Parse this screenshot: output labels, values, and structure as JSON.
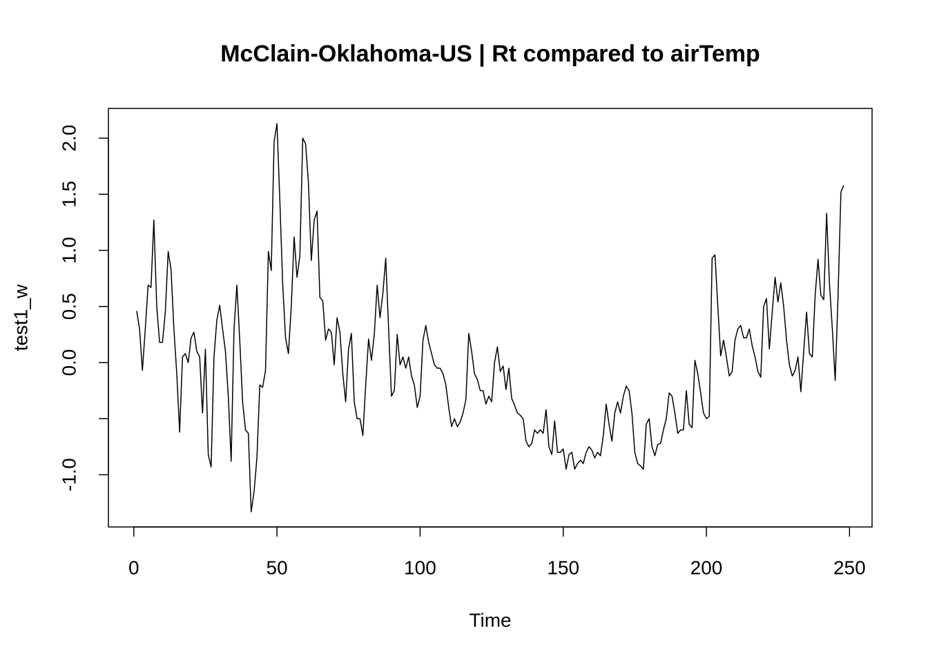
{
  "chart_data": {
    "type": "line",
    "title": "McClain-Oklahoma-US | Rt compared to airTemp",
    "x_label": "Time",
    "y_label": "test1_w",
    "x": [
      1,
      2,
      3,
      4,
      5,
      6,
      7,
      8,
      9,
      10,
      11,
      12,
      13,
      14,
      15,
      16,
      17,
      18,
      19,
      20,
      21,
      22,
      23,
      24,
      25,
      26,
      27,
      28,
      29,
      30,
      31,
      32,
      33,
      34,
      35,
      36,
      37,
      38,
      39,
      40,
      41,
      42,
      43,
      44,
      45,
      46,
      47,
      48,
      49,
      50,
      51,
      52,
      53,
      54,
      55,
      56,
      57,
      58,
      59,
      60,
      61,
      62,
      63,
      64,
      65,
      66,
      67,
      68,
      69,
      70,
      71,
      72,
      73,
      74,
      75,
      76,
      77,
      78,
      79,
      80,
      81,
      82,
      83,
      84,
      85,
      86,
      87,
      88,
      89,
      90,
      91,
      92,
      93,
      94,
      95,
      96,
      97,
      98,
      99,
      100,
      101,
      102,
      103,
      104,
      105,
      106,
      107,
      108,
      109,
      110,
      111,
      112,
      113,
      114,
      115,
      116,
      117,
      118,
      119,
      120,
      121,
      122,
      123,
      124,
      125,
      126,
      127,
      128,
      129,
      130,
      131,
      132,
      133,
      134,
      135,
      136,
      137,
      138,
      139,
      140,
      141,
      142,
      143,
      144,
      145,
      146,
      147,
      148,
      149,
      150,
      151,
      152,
      153,
      154,
      155,
      156,
      157,
      158,
      159,
      160,
      161,
      162,
      163,
      164,
      165,
      166,
      167,
      168,
      169,
      170,
      171,
      172,
      173,
      174,
      175,
      176,
      177,
      178,
      179,
      180,
      181,
      182,
      183,
      184,
      185,
      186,
      187,
      188,
      189,
      190,
      191,
      192,
      193,
      194,
      195,
      196,
      197,
      198,
      199,
      200,
      201,
      202,
      203,
      204,
      205,
      206,
      207,
      208,
      209,
      210,
      211,
      212,
      213,
      214,
      215,
      216,
      217,
      218,
      219,
      220,
      221,
      222,
      223,
      224,
      225,
      226,
      227,
      228,
      229,
      230,
      231,
      232,
      233,
      234,
      235,
      236,
      237,
      238,
      239,
      240,
      241,
      242,
      243,
      244,
      245,
      246,
      247,
      248
    ],
    "series": [
      {
        "color": "#000000",
        "values": [
          0.46,
          0.3,
          -0.07,
          0.3,
          0.69,
          0.67,
          1.27,
          0.5,
          0.18,
          0.18,
          0.45,
          0.99,
          0.83,
          0.3,
          -0.1,
          -0.62,
          0.05,
          0.08,
          0.0,
          0.22,
          0.27,
          0.1,
          0.05,
          -0.45,
          0.12,
          -0.82,
          -0.93,
          0.05,
          0.38,
          0.51,
          0.3,
          0.1,
          -0.3,
          -0.88,
          0.3,
          0.69,
          0.2,
          -0.35,
          -0.6,
          -0.63,
          -1.33,
          -1.15,
          -0.85,
          -0.2,
          -0.22,
          -0.07,
          0.99,
          0.82,
          1.97,
          2.13,
          1.45,
          0.7,
          0.22,
          0.08,
          0.5,
          1.12,
          0.76,
          0.95,
          2.0,
          1.95,
          1.6,
          0.91,
          1.27,
          1.35,
          0.58,
          0.55,
          0.2,
          0.3,
          0.27,
          -0.02,
          0.4,
          0.27,
          -0.1,
          -0.35,
          0.12,
          0.26,
          -0.35,
          -0.5,
          -0.5,
          -0.65,
          -0.2,
          0.21,
          0.02,
          0.25,
          0.69,
          0.4,
          0.62,
          0.93,
          0.3,
          -0.3,
          -0.25,
          0.25,
          -0.02,
          0.05,
          -0.05,
          0.05,
          -0.12,
          -0.2,
          -0.4,
          -0.3,
          0.2,
          0.33,
          0.18,
          0.08,
          -0.02,
          -0.05,
          -0.05,
          -0.1,
          -0.2,
          -0.4,
          -0.57,
          -0.5,
          -0.57,
          -0.53,
          -0.45,
          -0.33,
          0.26,
          0.1,
          -0.1,
          -0.15,
          -0.25,
          -0.25,
          -0.37,
          -0.3,
          -0.35,
          0.0,
          0.14,
          -0.08,
          -0.03,
          -0.24,
          -0.05,
          -0.32,
          -0.38,
          -0.45,
          -0.47,
          -0.5,
          -0.7,
          -0.75,
          -0.72,
          -0.6,
          -0.63,
          -0.6,
          -0.63,
          -0.42,
          -0.75,
          -0.82,
          -0.52,
          -0.8,
          -0.8,
          -0.77,
          -0.95,
          -0.82,
          -0.8,
          -0.95,
          -0.9,
          -0.87,
          -0.9,
          -0.8,
          -0.75,
          -0.78,
          -0.85,
          -0.8,
          -0.83,
          -0.65,
          -0.37,
          -0.55,
          -0.7,
          -0.45,
          -0.35,
          -0.45,
          -0.3,
          -0.21,
          -0.25,
          -0.45,
          -0.8,
          -0.9,
          -0.92,
          -0.95,
          -0.55,
          -0.5,
          -0.75,
          -0.83,
          -0.73,
          -0.72,
          -0.6,
          -0.5,
          -0.27,
          -0.3,
          -0.45,
          -0.63,
          -0.6,
          -0.6,
          -0.25,
          -0.55,
          -0.58,
          0.02,
          -0.1,
          -0.27,
          -0.45,
          -0.5,
          -0.48,
          0.93,
          0.96,
          0.5,
          0.06,
          0.2,
          0.05,
          -0.12,
          -0.08,
          0.2,
          0.3,
          0.33,
          0.22,
          0.22,
          0.3,
          0.15,
          0.05,
          -0.08,
          -0.13,
          0.5,
          0.57,
          0.12,
          0.45,
          0.76,
          0.54,
          0.71,
          0.5,
          0.2,
          -0.02,
          -0.12,
          -0.07,
          0.05,
          -0.26,
          0.1,
          0.45,
          0.08,
          0.05,
          0.6,
          0.92,
          0.6,
          0.56,
          1.33,
          0.7,
          0.3,
          -0.16,
          0.6,
          1.52,
          1.58
        ]
      }
    ],
    "xlim": [
      -8.88,
      257.88
    ],
    "xticks": [
      0,
      50,
      100,
      150,
      200,
      250
    ],
    "ylim": [
      -1.465,
      2.265
    ],
    "yticks": [
      {
        "value": -1.0,
        "label": "-1.0"
      },
      {
        "value": -0.5,
        "label": null
      },
      {
        "value": 0.0,
        "label": "0.0"
      },
      {
        "value": 0.5,
        "label": "0.5"
      },
      {
        "value": 1.0,
        "label": "1.0"
      },
      {
        "value": 1.5,
        "label": "1.5"
      },
      {
        "value": 2.0,
        "label": "2.0"
      }
    ]
  }
}
